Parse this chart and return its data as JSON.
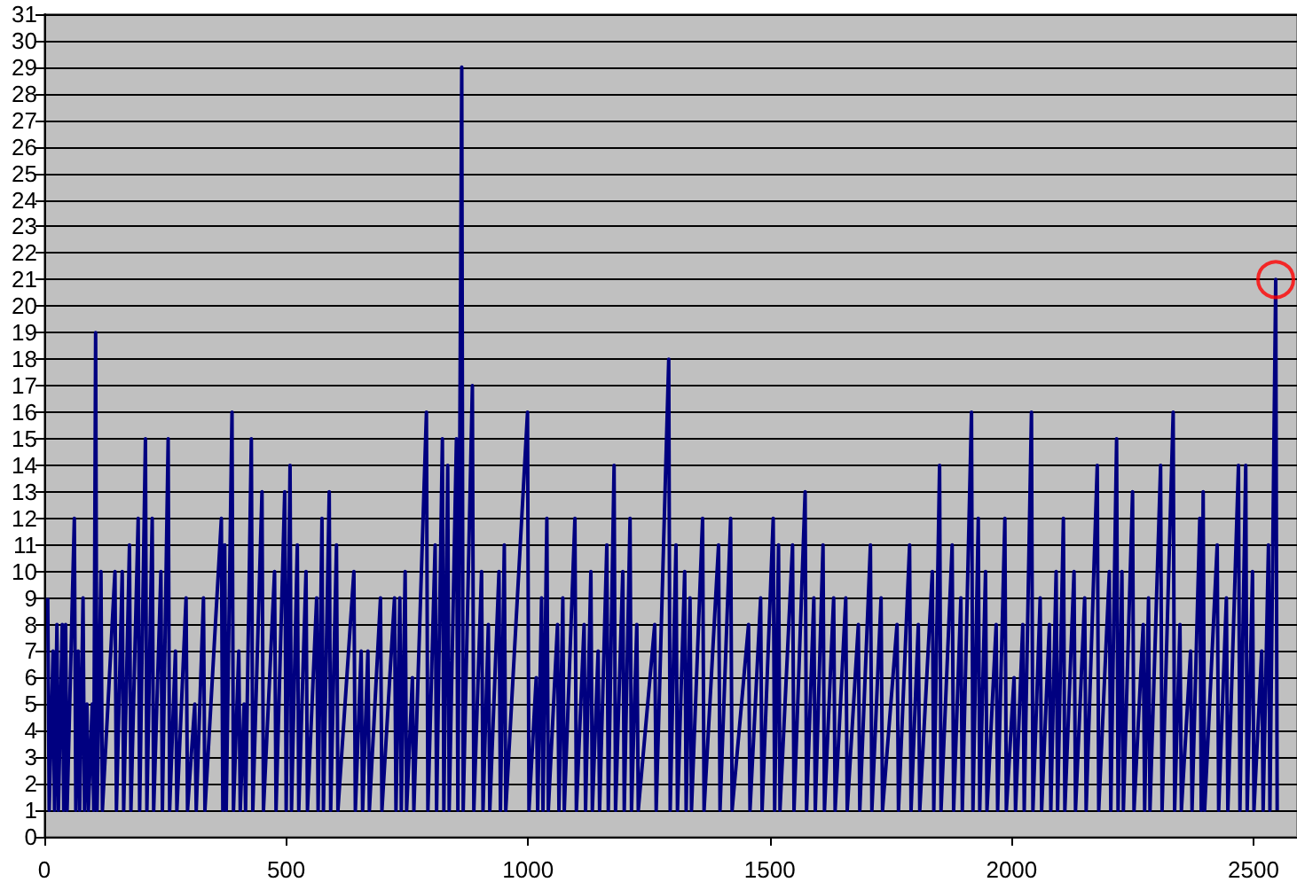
{
  "chart_data": {
    "type": "line",
    "xlim": [
      0,
      2590
    ],
    "xticks": [
      0,
      500,
      1000,
      1500,
      2000,
      2500
    ],
    "ylim": [
      0,
      31
    ],
    "yticks": [
      0,
      1,
      2,
      3,
      4,
      5,
      6,
      7,
      8,
      9,
      10,
      11,
      12,
      13,
      14,
      15,
      16,
      17,
      18,
      19,
      20,
      21,
      22,
      23,
      24,
      25,
      26,
      27,
      28,
      29,
      30,
      31
    ],
    "grid": "y",
    "marker": "none",
    "line_style": "solid",
    "series": [
      {
        "color": "#000080",
        "x": [
          7,
          10,
          18,
          21,
          26,
          29,
          37,
          40,
          44,
          47,
          62,
          65,
          70,
          73,
          80,
          83,
          88,
          91,
          99,
          102,
          106,
          109,
          117,
          120,
          146,
          149,
          161,
          164,
          176,
          179,
          194,
          197,
          209,
          212,
          223,
          226,
          241,
          244,
          256,
          259,
          271,
          274,
          293,
          296,
          311,
          314,
          329,
          332,
          366,
          369,
          373,
          376,
          388,
          391,
          402,
          405,
          413,
          416,
          428,
          431,
          450,
          453,
          476,
          479,
          497,
          500,
          508,
          511,
          523,
          526,
          541,
          544,
          563,
          566,
          574,
          577,
          589,
          592,
          604,
          607,
          640,
          643,
          655,
          658,
          669,
          672,
          695,
          698,
          724,
          727,
          735,
          738,
          746,
          749,
          761,
          764,
          790,
          793,
          808,
          811,
          823,
          826,
          834,
          837,
          852,
          855,
          863,
          866,
          885,
          888,
          904,
          907,
          918,
          921,
          940,
          943,
          951,
          954,
          999,
          1002,
          1017,
          1020,
          1028,
          1031,
          1039,
          1042,
          1061,
          1064,
          1072,
          1075,
          1097,
          1100,
          1116,
          1119,
          1130,
          1133,
          1145,
          1148,
          1163,
          1166,
          1178,
          1181,
          1196,
          1199,
          1211,
          1214,
          1225,
          1228,
          1262,
          1265,
          1291,
          1294,
          1306,
          1309,
          1324,
          1327,
          1335,
          1338,
          1361,
          1364,
          1394,
          1397,
          1419,
          1422,
          1456,
          1459,
          1481,
          1484,
          1507,
          1510,
          1518,
          1521,
          1547,
          1550,
          1573,
          1576,
          1591,
          1594,
          1610,
          1613,
          1632,
          1635,
          1657,
          1660,
          1683,
          1686,
          1708,
          1711,
          1730,
          1733,
          1763,
          1766,
          1789,
          1792,
          1807,
          1810,
          1836,
          1839,
          1851,
          1854,
          1877,
          1880,
          1895,
          1898,
          1917,
          1920,
          1931,
          1934,
          1946,
          1949,
          1968,
          1971,
          1986,
          1989,
          2005,
          2008,
          2023,
          2026,
          2041,
          2044,
          2059,
          2062,
          2078,
          2081,
          2092,
          2095,
          2107,
          2110,
          2129,
          2132,
          2151,
          2154,
          2177,
          2180,
          2202,
          2205,
          2217,
          2220,
          2228,
          2231,
          2250,
          2253,
          2272,
          2275,
          2283,
          2286,
          2308,
          2311,
          2334,
          2337,
          2348,
          2351,
          2370,
          2373,
          2389,
          2392,
          2396,
          2399,
          2425,
          2428,
          2444,
          2447,
          2469,
          2472,
          2484,
          2487,
          2498,
          2501,
          2517,
          2520,
          2531,
          2534,
          2546,
          2549
        ],
        "values": [
          9,
          1,
          7,
          1,
          8,
          1,
          8,
          1,
          8,
          1,
          12,
          1,
          7,
          1,
          9,
          1,
          5,
          1,
          5,
          1,
          19,
          1,
          10,
          1,
          10,
          1,
          10,
          1,
          11,
          1,
          12,
          1,
          15,
          1,
          12,
          1,
          10,
          1,
          15,
          1,
          7,
          1,
          9,
          1,
          5,
          1,
          9,
          1,
          12,
          1,
          11,
          1,
          16,
          1,
          7,
          1,
          5,
          1,
          15,
          1,
          13,
          1,
          10,
          1,
          13,
          1,
          14,
          1,
          11,
          1,
          10,
          1,
          9,
          1,
          12,
          1,
          13,
          1,
          11,
          1,
          10,
          1,
          7,
          1,
          7,
          1,
          9,
          1,
          9,
          1,
          9,
          1,
          10,
          1,
          6,
          1,
          16,
          1,
          11,
          1,
          15,
          1,
          14,
          1,
          15,
          1,
          29,
          1,
          17,
          1,
          10,
          1,
          8,
          1,
          10,
          1,
          11,
          1,
          16,
          1,
          6,
          1,
          9,
          1,
          12,
          1,
          8,
          1,
          9,
          1,
          12,
          1,
          8,
          1,
          10,
          1,
          7,
          1,
          11,
          1,
          14,
          1,
          10,
          1,
          12,
          1,
          8,
          1,
          8,
          1,
          18,
          1,
          11,
          1,
          10,
          1,
          9,
          1,
          12,
          1,
          11,
          1,
          12,
          1,
          8,
          1,
          9,
          1,
          12,
          1,
          11,
          1,
          11,
          1,
          13,
          1,
          9,
          1,
          11,
          1,
          9,
          1,
          9,
          1,
          8,
          1,
          11,
          1,
          9,
          1,
          8,
          1,
          11,
          1,
          8,
          1,
          10,
          1,
          14,
          1,
          11,
          1,
          9,
          1,
          16,
          1,
          12,
          1,
          10,
          1,
          8,
          1,
          12,
          1,
          6,
          1,
          8,
          1,
          16,
          1,
          9,
          1,
          8,
          1,
          10,
          1,
          12,
          1,
          10,
          1,
          9,
          1,
          14,
          1,
          10,
          1,
          15,
          1,
          10,
          1,
          13,
          1,
          8,
          1,
          9,
          1,
          14,
          1,
          16,
          1,
          8,
          1,
          7,
          1,
          12,
          1,
          13,
          1,
          11,
          1,
          9,
          1,
          14,
          1,
          14,
          1,
          10,
          1,
          7,
          1,
          11,
          1,
          21,
          1
        ]
      },
      {
        "type": "scatter",
        "marker": "circle",
        "color": "#ff0000",
        "x": [
          2546
        ],
        "values": [
          21
        ]
      }
    ]
  }
}
